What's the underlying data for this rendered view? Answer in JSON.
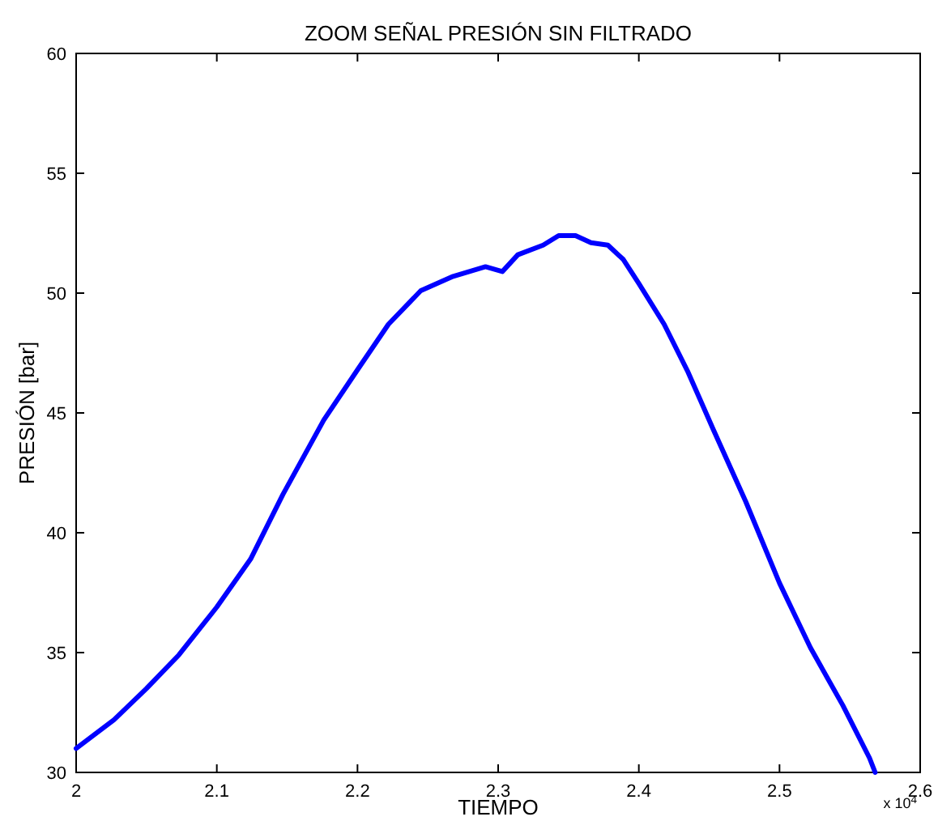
{
  "chart_data": {
    "type": "line",
    "title": "ZOOM SEÑAL PRESIÓN SIN FILTRADO",
    "xlabel": "TIEMPO",
    "ylabel": "PRESIÓN [bar]",
    "annotations": [
      "x 10$^{4}$"
    ],
    "x": [
      2.0,
      2.027,
      2.05,
      2.073,
      2.1,
      2.124,
      2.147,
      2.176,
      2.2,
      2.222,
      2.245,
      2.268,
      2.291,
      2.303,
      2.314,
      2.332,
      2.343,
      2.355,
      2.366,
      2.378,
      2.389,
      2.4,
      2.418,
      2.435,
      2.453,
      2.476,
      2.5,
      2.522,
      2.545,
      2.564,
      2.568
    ],
    "series": [
      {
        "color": "#0000ff",
        "values": [
          31.0,
          32.2,
          33.5,
          34.9,
          36.9,
          38.9,
          41.6,
          44.7,
          46.8,
          48.7,
          50.1,
          50.7,
          51.1,
          50.9,
          51.6,
          52.0,
          52.4,
          52.4,
          52.1,
          52.0,
          51.4,
          50.4,
          48.7,
          46.7,
          44.3,
          41.3,
          37.9,
          35.2,
          32.8,
          30.6,
          30.0
        ]
      }
    ],
    "xlim": [
      2,
      2.6
    ],
    "ylim": [
      30,
      60
    ],
    "xticks": [
      2,
      2.1,
      2.2,
      2.3,
      2.4,
      2.5,
      2.6
    ],
    "yticks": [
      30,
      35,
      40,
      45,
      50,
      55,
      60
    ],
    "marker": "none",
    "line_style": "solid"
  }
}
